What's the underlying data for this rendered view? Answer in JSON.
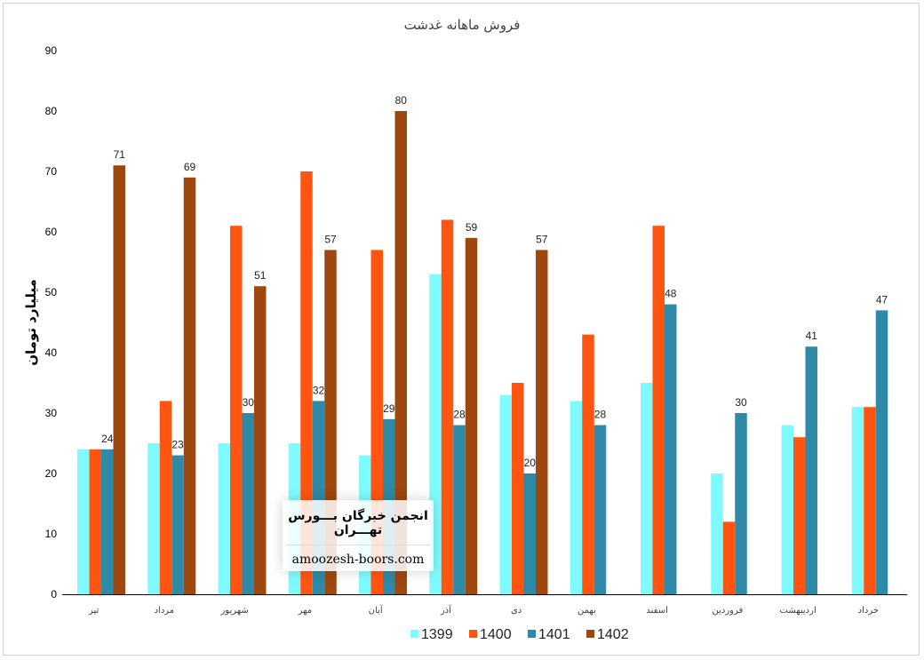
{
  "watermark": {
    "title": "انجمن خبرگان بـــورس تهـــران",
    "url": "amoozesh-boors.com"
  },
  "chart_data": {
    "type": "bar",
    "title": "فروش ماهانه غدشت",
    "ylabel": "میلیارد تومان",
    "xlabel": "",
    "ylim": [
      0,
      90
    ],
    "yticks": [
      0,
      10,
      20,
      30,
      40,
      50,
      60,
      70,
      80,
      90
    ],
    "grid": false,
    "legend": "bottom",
    "categories": [
      "تیر",
      "مرداد",
      "شهریور",
      "مهر",
      "آبان",
      "آذر",
      "دی",
      "بهمن",
      "اسفند",
      "فروردین",
      "اردیبهشت",
      "خرداد"
    ],
    "series": [
      {
        "name": "1399",
        "color": "#7ffbff",
        "values": [
          24,
          25,
          25,
          25,
          23,
          53,
          33,
          32,
          35,
          20,
          28,
          31
        ]
      },
      {
        "name": "1400",
        "color": "#ff5511",
        "values": [
          24,
          32,
          61,
          70,
          57,
          62,
          35,
          43,
          61,
          12,
          26,
          31
        ]
      },
      {
        "name": "1401",
        "color": "#2e8aa6",
        "values": [
          24,
          23,
          30,
          32,
          29,
          28,
          20,
          28,
          48,
          30,
          41,
          47
        ]
      },
      {
        "name": "1402",
        "color": "#9e470e",
        "values": [
          71,
          69,
          51,
          57,
          80,
          59,
          57,
          null,
          null,
          null,
          null,
          null
        ]
      }
    ],
    "data_labels": {
      "1401": [
        24,
        23,
        30,
        32,
        29,
        28,
        20,
        28,
        48,
        30,
        41,
        47
      ],
      "1402": [
        71,
        69,
        51,
        57,
        80,
        59,
        57,
        null,
        null,
        null,
        null,
        null
      ]
    }
  }
}
